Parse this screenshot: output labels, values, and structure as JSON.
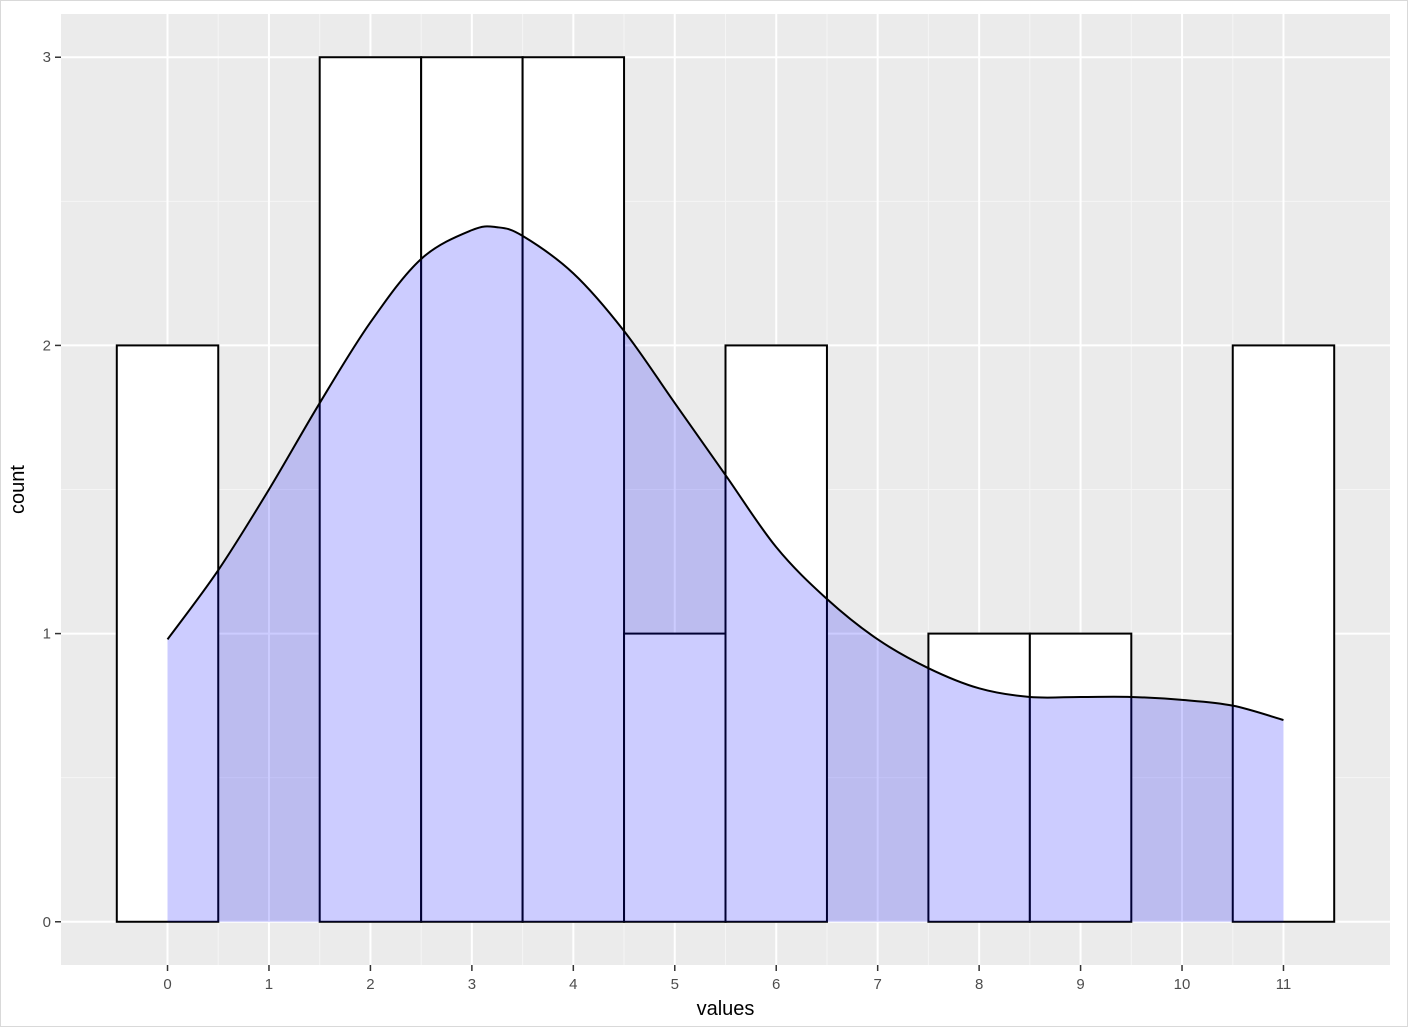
{
  "chart_data": {
    "type": "bar",
    "title": "",
    "xlabel": "values",
    "ylabel": "count",
    "xlim": [
      -1.05,
      12.05
    ],
    "ylim": [
      -0.15,
      3.15
    ],
    "x_ticks": [
      0,
      1,
      2,
      3,
      4,
      5,
      6,
      7,
      8,
      9,
      10,
      11
    ],
    "x_tick_labels": [
      "0",
      "1",
      "2",
      "3",
      "4",
      "5",
      "6",
      "7",
      "8",
      "9",
      "10",
      "11"
    ],
    "y_ticks": [
      0,
      1,
      2,
      3
    ],
    "y_tick_labels": [
      "0",
      "1",
      "2",
      "3"
    ],
    "grid": true,
    "histogram": {
      "bin_width": 1,
      "bin_centers": [
        0,
        1,
        2,
        3,
        4,
        5,
        6,
        7,
        8,
        9,
        10,
        11
      ],
      "counts": [
        2,
        0,
        3,
        3,
        3,
        1,
        2,
        0,
        1,
        1,
        0,
        2
      ],
      "fill": "#ffffff",
      "outline": "#000000"
    },
    "density": {
      "x": [
        0,
        0.5,
        1,
        1.5,
        2,
        2.5,
        3,
        3.25,
        3.5,
        4,
        4.5,
        5,
        5.5,
        6,
        6.5,
        7,
        7.5,
        8,
        8.5,
        9,
        9.5,
        10,
        10.5,
        11
      ],
      "y": [
        0.98,
        1.22,
        1.5,
        1.8,
        2.08,
        2.3,
        2.4,
        2.41,
        2.38,
        2.25,
        2.05,
        1.8,
        1.55,
        1.3,
        1.12,
        0.98,
        0.88,
        0.81,
        0.78,
        0.78,
        0.78,
        0.77,
        0.75,
        0.7
      ],
      "fill": "#0000ff",
      "fill_opacity": 0.2,
      "line": "#000000"
    },
    "colors": {
      "panel_background": "#ebebeb",
      "grid_major": "#ffffff",
      "grid_minor": "#f5f5f5"
    }
  }
}
